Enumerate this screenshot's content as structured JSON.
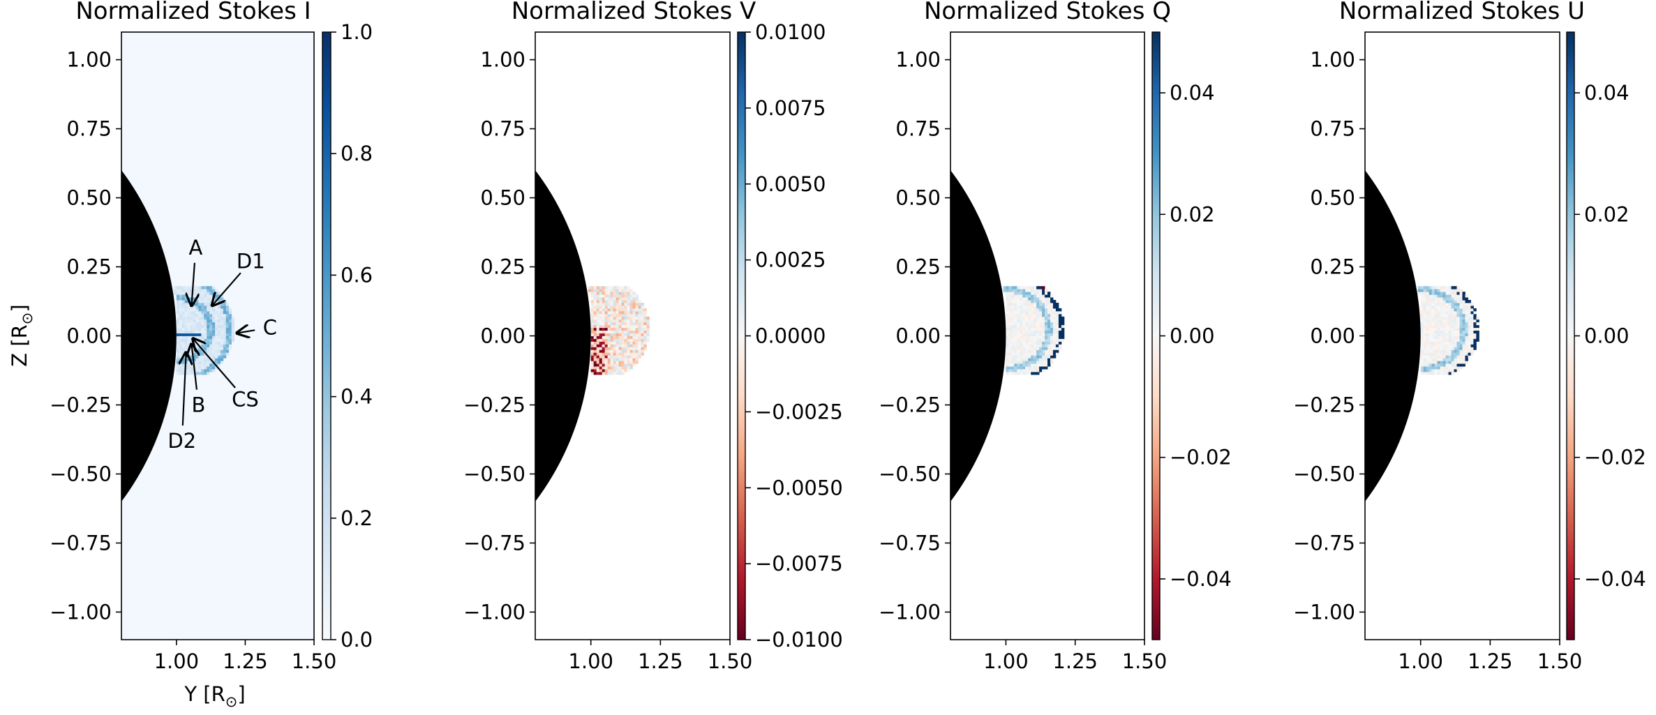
{
  "chart_data": [
    {
      "type": "heatmap",
      "title": "Normalized Stokes I",
      "xlabel": "Y [R$_\\odot$]",
      "xlabel_display": "Y [R",
      "xlabel_sub": "⊙",
      "xlabel_close": "]",
      "ylabel_display": "Z [R",
      "ylabel_sub": "⊙",
      "ylabel_close": "]",
      "xlim": [
        0.8,
        1.5
      ],
      "ylim": [
        -1.1,
        1.1
      ],
      "xticks": [
        1.0,
        1.25,
        1.5
      ],
      "xtick_labels": [
        "1.00",
        "1.25",
        "1.50"
      ],
      "yticks": [
        1.0,
        0.75,
        0.5,
        0.25,
        0.0,
        -0.25,
        -0.5,
        -0.75,
        -1.0
      ],
      "ytick_labels": [
        "1.00",
        "0.75",
        "0.50",
        "0.25",
        "0.00",
        "−0.25",
        "−0.50",
        "−0.75",
        "−1.00"
      ],
      "colormap": "Blues",
      "colorbar_range": [
        0.0,
        1.0
      ],
      "colorbar_ticks": [
        0.0,
        0.2,
        0.4,
        0.6,
        0.8,
        1.0
      ],
      "colorbar_tick_labels": [
        "0.0",
        "0.2",
        "0.4",
        "0.6",
        "0.8",
        "1.0"
      ],
      "background_value": 0.02,
      "solar_disk_radius": 1.0,
      "feature_region": {
        "y_range": [
          1.0,
          1.2
        ],
        "z_range": [
          -0.1,
          0.18
        ],
        "typical_value": 0.15
      },
      "annotations": [
        {
          "label": "A",
          "text_at": [
            1.07,
            0.32
          ],
          "arrow_to": [
            1.055,
            0.11
          ]
        },
        {
          "label": "D1",
          "text_at": [
            1.27,
            0.27
          ],
          "arrow_to": [
            1.13,
            0.11
          ]
        },
        {
          "label": "C",
          "text_at": [
            1.34,
            0.03
          ],
          "arrow_to": [
            1.22,
            0.01
          ]
        },
        {
          "label": "CS",
          "text_at": [
            1.25,
            -0.23
          ],
          "arrow_to": [
            1.06,
            -0.01
          ]
        },
        {
          "label": "B",
          "text_at": [
            1.08,
            -0.25
          ],
          "arrow_to": [
            1.055,
            -0.03
          ]
        },
        {
          "label": "D2",
          "text_at": [
            1.02,
            -0.38
          ],
          "arrow_to": [
            1.035,
            -0.06
          ]
        }
      ]
    },
    {
      "type": "heatmap",
      "title": "Normalized Stokes V",
      "xlim": [
        0.8,
        1.5
      ],
      "ylim": [
        -1.1,
        1.1
      ],
      "xticks": [
        1.0,
        1.25,
        1.5
      ],
      "xtick_labels": [
        "1.00",
        "1.25",
        "1.50"
      ],
      "yticks": [
        1.0,
        0.75,
        0.5,
        0.25,
        0.0,
        -0.25,
        -0.5,
        -0.75,
        -1.0
      ],
      "ytick_labels": [
        "1.00",
        "0.75",
        "0.50",
        "0.25",
        "0.00",
        "−0.25",
        "−0.50",
        "−0.75",
        "−1.00"
      ],
      "colormap": "RdBu",
      "colorbar_range": [
        -0.01,
        0.01
      ],
      "colorbar_ticks": [
        0.01,
        0.0075,
        0.005,
        0.0025,
        0.0,
        -0.0025,
        -0.005,
        -0.0075,
        -0.01
      ],
      "colorbar_tick_labels": [
        "0.0100",
        "0.0075",
        "0.0050",
        "0.0025",
        "0.0000",
        "−0.0025",
        "−0.0050",
        "−0.0075",
        "−0.0100"
      ],
      "solar_disk_radius": 1.0,
      "feature_region": {
        "y_range": [
          1.0,
          1.2
        ],
        "z_range": [
          -0.1,
          0.18
        ],
        "typical_value": -0.002
      }
    },
    {
      "type": "heatmap",
      "title": "Normalized Stokes Q",
      "xlim": [
        0.8,
        1.5
      ],
      "ylim": [
        -1.1,
        1.1
      ],
      "xticks": [
        1.0,
        1.25,
        1.5
      ],
      "xtick_labels": [
        "1.00",
        "1.25",
        "1.50"
      ],
      "yticks": [
        1.0,
        0.75,
        0.5,
        0.25,
        0.0,
        -0.25,
        -0.5,
        -0.75,
        -1.0
      ],
      "ytick_labels": [
        "1.00",
        "0.75",
        "0.50",
        "0.25",
        "0.00",
        "−0.25",
        "−0.50",
        "−0.75",
        "−1.00"
      ],
      "colormap": "RdBu",
      "colorbar_range": [
        -0.05,
        0.05
      ],
      "colorbar_ticks": [
        0.04,
        0.02,
        0.0,
        -0.02,
        -0.04
      ],
      "colorbar_tick_labels": [
        "0.04",
        "0.02",
        "0.00",
        "−0.02",
        "−0.04"
      ],
      "solar_disk_radius": 1.0,
      "feature_region": {
        "y_range": [
          1.0,
          1.2
        ],
        "z_range": [
          -0.1,
          0.18
        ],
        "typical_value": 0.003
      }
    },
    {
      "type": "heatmap",
      "title": "Normalized Stokes U",
      "xlim": [
        0.8,
        1.5
      ],
      "ylim": [
        -1.1,
        1.1
      ],
      "xticks": [
        1.0,
        1.25,
        1.5
      ],
      "xtick_labels": [
        "1.00",
        "1.25",
        "1.50"
      ],
      "yticks": [
        1.0,
        0.75,
        0.5,
        0.25,
        0.0,
        -0.25,
        -0.5,
        -0.75,
        -1.0
      ],
      "ytick_labels": [
        "1.00",
        "0.75",
        "0.50",
        "0.25",
        "0.00",
        "−0.25",
        "−0.50",
        "−0.75",
        "−1.00"
      ],
      "colormap": "RdBu",
      "colorbar_range": [
        -0.05,
        0.05
      ],
      "colorbar_ticks": [
        0.04,
        0.02,
        0.0,
        -0.02,
        -0.04
      ],
      "colorbar_tick_labels": [
        "0.04",
        "0.02",
        "0.00",
        "−0.02",
        "−0.04"
      ],
      "solar_disk_radius": 1.0,
      "feature_region": {
        "y_range": [
          1.0,
          1.2
        ],
        "z_range": [
          -0.1,
          0.18
        ],
        "typical_value": 0.003
      }
    }
  ]
}
